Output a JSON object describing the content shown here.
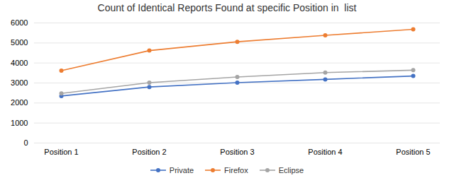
{
  "chart_data": {
    "type": "line",
    "title": "Count of Identical Reports Found at specific Position in  list",
    "categories": [
      "Position 1",
      "Position 2",
      "Position 3",
      "Position 4",
      "Position 5"
    ],
    "series": [
      {
        "name": "Private",
        "color": "#4472C4",
        "marker": "circle",
        "values": [
          2350,
          2800,
          3020,
          3180,
          3350
        ]
      },
      {
        "name": "Firefox",
        "color": "#ED7D31",
        "marker": "circle",
        "values": [
          3620,
          4620,
          5060,
          5380,
          5680
        ]
      },
      {
        "name": "Eclipse",
        "color": "#A5A5A5",
        "marker": "circle",
        "values": [
          2480,
          3020,
          3300,
          3520,
          3640
        ]
      }
    ],
    "ylim": [
      0,
      6000
    ],
    "yticks": [
      0,
      1000,
      2000,
      3000,
      4000,
      5000,
      6000
    ],
    "grid": true,
    "legend": "bottom"
  }
}
